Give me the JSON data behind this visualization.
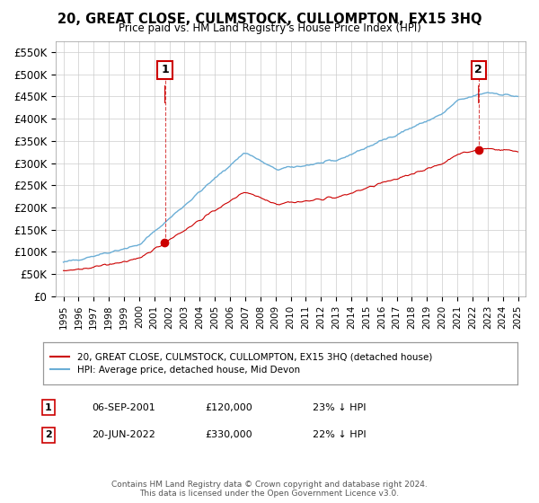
{
  "title": "20, GREAT CLOSE, CULMSTOCK, CULLOMPTON, EX15 3HQ",
  "subtitle": "Price paid vs. HM Land Registry's House Price Index (HPI)",
  "ylabel_ticks": [
    "£0",
    "£50K",
    "£100K",
    "£150K",
    "£200K",
    "£250K",
    "£300K",
    "£350K",
    "£400K",
    "£450K",
    "£500K",
    "£550K"
  ],
  "ytick_values": [
    0,
    50000,
    100000,
    150000,
    200000,
    250000,
    300000,
    350000,
    400000,
    450000,
    500000,
    550000
  ],
  "ylim": [
    0,
    575000
  ],
  "xlim_start": 1994.5,
  "xlim_end": 2025.5,
  "legend_line1": "20, GREAT CLOSE, CULMSTOCK, CULLOMPTON, EX15 3HQ (detached house)",
  "legend_line2": "HPI: Average price, detached house, Mid Devon",
  "annotation1_label": "1",
  "annotation1_date": "06-SEP-2001",
  "annotation1_price": "£120,000",
  "annotation1_hpi": "23% ↓ HPI",
  "annotation2_label": "2",
  "annotation2_date": "20-JUN-2022",
  "annotation2_price": "£330,000",
  "annotation2_hpi": "22% ↓ HPI",
  "footer": "Contains HM Land Registry data © Crown copyright and database right 2024.\nThis data is licensed under the Open Government Licence v3.0.",
  "sale_color": "#cc0000",
  "hpi_color": "#6baed6",
  "background_color": "#ffffff",
  "grid_color": "#cccccc"
}
